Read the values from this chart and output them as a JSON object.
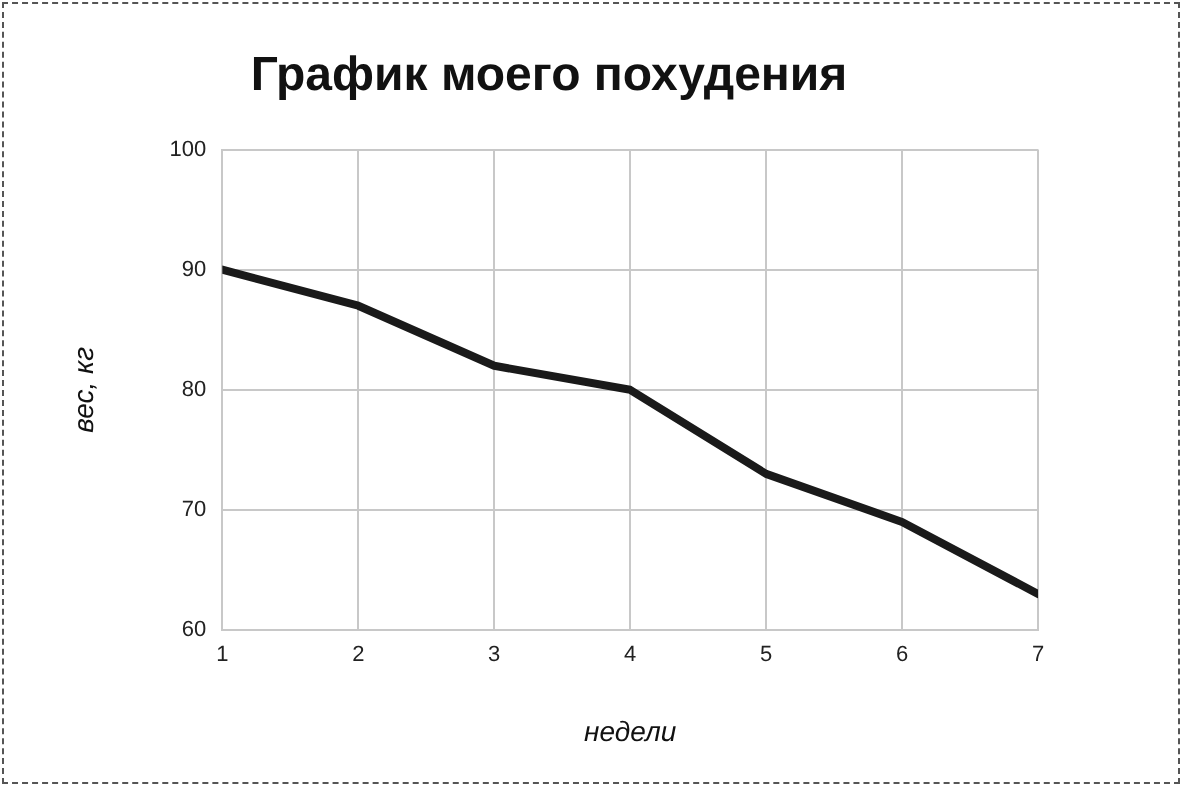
{
  "chart_data": {
    "type": "line",
    "title": "График моего похудения",
    "xlabel": "недели",
    "ylabel": "вес, кг",
    "x": [
      1,
      2,
      3,
      4,
      5,
      6,
      7
    ],
    "series": [
      {
        "color": "#1a1a1a",
        "values": [
          90,
          87,
          82,
          80,
          73,
          69,
          63
        ]
      }
    ],
    "xlim": [
      1,
      7
    ],
    "xticks": [
      1,
      2,
      3,
      4,
      5,
      6,
      7
    ],
    "ylim": [
      60,
      100
    ],
    "yticks": [
      60,
      70,
      80,
      90,
      100
    ],
    "grid": true,
    "legend": false,
    "marker": "none",
    "line_style": "solid"
  }
}
